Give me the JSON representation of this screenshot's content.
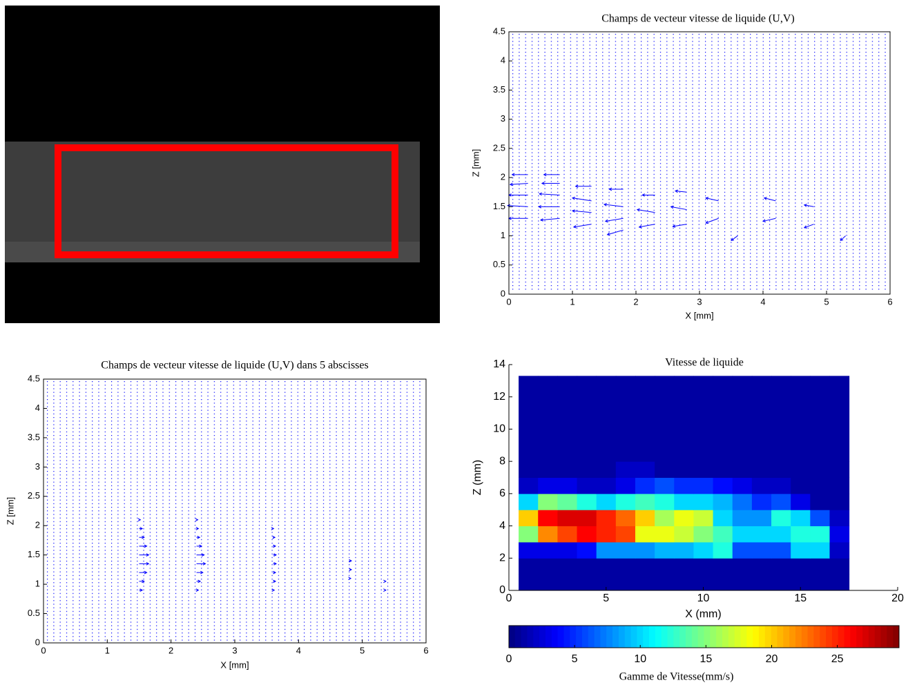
{
  "chart_data": [
    {
      "type": "quiver",
      "title": "Champs de vecteur vitesse de liquide (U,V)",
      "xlabel": "X [mm]",
      "ylabel": "Z [mm]",
      "xlim": [
        0,
        6
      ],
      "ylim": [
        0,
        4.5
      ],
      "xticks": [
        0,
        1,
        2,
        3,
        4,
        5,
        6
      ],
      "yticks": [
        0,
        0.5,
        1,
        1.5,
        2,
        2.5,
        3,
        3.5,
        4,
        4.5
      ],
      "color": "#0000ff",
      "x": [
        0.3,
        0.3,
        0.3,
        0.3,
        0.3,
        0.8,
        0.8,
        0.8,
        0.8,
        0.8,
        1.3,
        1.3,
        1.3,
        1.3,
        1.8,
        1.8,
        1.8,
        1.8,
        2.3,
        2.3,
        2.3,
        2.8,
        2.8,
        2.8,
        3.3,
        3.3,
        3.6,
        4.2,
        4.2,
        4.8,
        4.8,
        5.3
      ],
      "y": [
        1.3,
        1.5,
        1.7,
        1.9,
        2.05,
        1.3,
        1.5,
        1.7,
        1.9,
        2.05,
        1.2,
        1.4,
        1.6,
        1.85,
        1.1,
        1.3,
        1.5,
        1.8,
        1.2,
        1.4,
        1.7,
        1.2,
        1.45,
        1.75,
        1.3,
        1.6,
        1.0,
        1.3,
        1.6,
        1.2,
        1.5,
        1.0
      ],
      "u": [
        -0.3,
        -0.32,
        -0.3,
        -0.28,
        -0.25,
        -0.3,
        -0.33,
        -0.32,
        -0.28,
        -0.25,
        -0.28,
        -0.3,
        -0.3,
        -0.25,
        -0.25,
        -0.28,
        -0.3,
        -0.22,
        -0.25,
        -0.28,
        -0.2,
        -0.22,
        -0.25,
        -0.18,
        -0.2,
        -0.2,
        -0.1,
        -0.2,
        -0.18,
        -0.15,
        -0.15,
        -0.08
      ],
      "v": [
        0.0,
        0.02,
        0.0,
        -0.02,
        0.0,
        -0.03,
        0.0,
        0.02,
        0.0,
        0.0,
        -0.05,
        0.03,
        0.05,
        0.0,
        -0.08,
        -0.05,
        0.04,
        0.0,
        -0.05,
        0.05,
        0.0,
        -0.04,
        0.05,
        0.02,
        -0.08,
        0.05,
        -0.08,
        -0.05,
        0.05,
        -0.06,
        0.03,
        -0.08
      ]
    },
    {
      "type": "quiver",
      "title": "Champs de vecteur vitesse de liquide (U,V) dans 5 abscisses",
      "xlabel": "X [mm]",
      "ylabel": "Z [mm]",
      "xlim": [
        0,
        6
      ],
      "ylim": [
        0,
        4.5
      ],
      "xticks": [
        0,
        1,
        2,
        3,
        4,
        5,
        6
      ],
      "yticks": [
        0,
        0.5,
        1,
        1.5,
        2,
        2.5,
        3,
        3.5,
        4,
        4.5
      ],
      "color": "#0000ff",
      "x": [
        1.5,
        1.5,
        1.5,
        1.5,
        1.5,
        1.5,
        1.5,
        1.5,
        1.5,
        2.4,
        2.4,
        2.4,
        2.4,
        2.4,
        2.4,
        2.4,
        2.4,
        2.4,
        3.6,
        3.6,
        3.6,
        3.6,
        3.6,
        3.6,
        3.6,
        3.6,
        4.8,
        4.8,
        4.8,
        5.35,
        5.35
      ],
      "y": [
        0.9,
        1.05,
        1.2,
        1.35,
        1.5,
        1.65,
        1.8,
        1.95,
        2.1,
        0.9,
        1.05,
        1.2,
        1.35,
        1.5,
        1.65,
        1.8,
        1.95,
        2.1,
        0.9,
        1.05,
        1.2,
        1.35,
        1.5,
        1.65,
        1.8,
        1.95,
        1.1,
        1.25,
        1.4,
        0.9,
        1.05
      ],
      "u": [
        0.05,
        0.08,
        0.12,
        0.15,
        0.15,
        0.12,
        0.08,
        0.05,
        0.02,
        0.03,
        0.06,
        0.1,
        0.14,
        0.12,
        0.08,
        0.05,
        0.03,
        0.02,
        0.02,
        0.04,
        0.04,
        0.05,
        0.05,
        0.04,
        0.03,
        0.01,
        0.02,
        0.03,
        0.03,
        0.02,
        0.02
      ],
      "v": [
        0,
        0,
        0,
        0,
        0,
        0,
        0,
        0,
        0,
        0,
        0,
        0,
        0,
        0,
        0,
        0,
        0,
        0,
        0,
        0,
        0,
        0,
        0,
        0,
        0,
        0,
        0,
        0,
        0,
        0,
        0
      ]
    },
    {
      "type": "heatmap",
      "title": "Vitesse de liquide",
      "xlabel": "X (mm)",
      "ylabel": "Z (mm)",
      "xlim": [
        0,
        20
      ],
      "ylim": [
        0,
        14
      ],
      "xticks": [
        0,
        5,
        10,
        15,
        20
      ],
      "yticks": [
        0,
        2,
        4,
        6,
        8,
        10,
        12,
        14
      ],
      "x_edges": [
        0.5,
        1.5,
        2.5,
        3.5,
        4.5,
        5.5,
        6.5,
        7.5,
        8.5,
        9.5,
        10.5,
        11.5,
        12.5,
        13.5,
        14.5,
        15.5,
        16.5,
        17.5
      ],
      "y_edges": [
        0,
        1,
        2,
        3,
        4,
        5,
        6,
        7,
        8,
        13.3
      ],
      "z": [
        [
          1,
          1,
          1,
          1,
          1,
          1,
          1,
          1,
          1,
          1,
          1,
          1,
          1,
          1,
          1,
          1,
          1
        ],
        [
          1,
          1,
          1,
          1,
          1,
          1,
          1,
          1,
          1,
          1,
          1,
          1,
          1,
          1,
          1,
          1,
          1
        ],
        [
          3,
          3,
          3,
          4,
          8,
          8,
          8,
          9,
          9,
          10,
          12,
          6,
          6,
          6,
          10,
          10,
          2
        ],
        [
          15,
          22,
          24,
          26,
          25,
          24,
          18,
          18,
          17,
          15,
          13,
          10,
          10,
          10,
          12,
          12,
          3
        ],
        [
          20,
          26,
          27,
          27,
          25,
          23,
          20,
          16,
          18,
          17,
          10,
          8,
          8,
          12,
          10,
          6,
          2
        ],
        [
          10,
          15,
          14,
          12,
          10,
          12,
          13,
          12,
          10,
          10,
          9,
          7,
          5,
          6,
          3,
          1,
          1
        ],
        [
          2,
          3,
          3,
          2,
          2,
          3,
          5,
          6,
          5,
          5,
          4,
          3,
          2,
          2,
          1,
          1,
          1
        ],
        [
          1,
          1,
          1,
          1,
          1,
          2,
          2,
          1,
          1,
          1,
          1,
          1,
          1,
          1,
          1,
          1,
          1
        ],
        [
          1,
          1,
          1,
          1,
          1,
          1,
          1,
          1,
          1,
          1,
          1,
          1,
          1,
          1,
          1,
          1,
          1
        ]
      ],
      "colorbar": {
        "label": "Gamme de Vitesse(mm/s)",
        "clim": [
          0,
          29.7
        ],
        "ticks": [
          0,
          5,
          10,
          15,
          20,
          25
        ]
      }
    }
  ]
}
